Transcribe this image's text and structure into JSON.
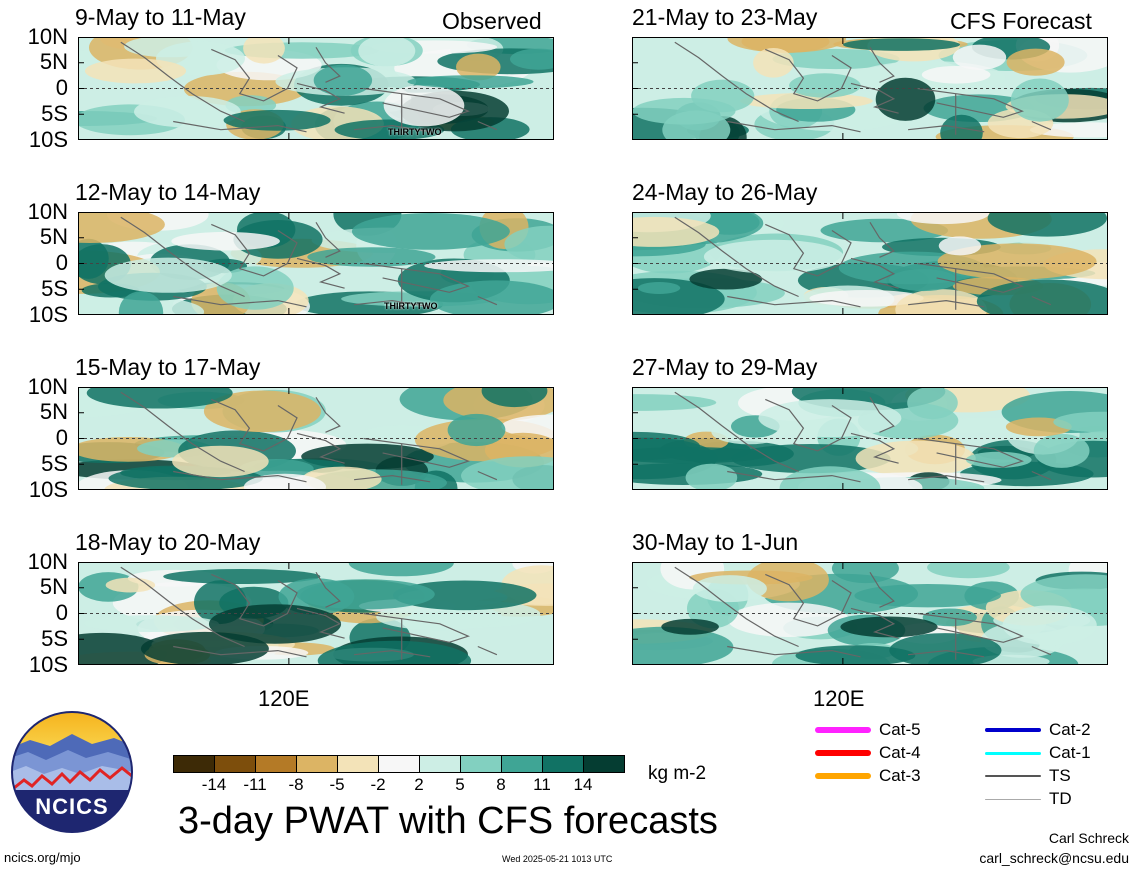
{
  "header": {
    "left_label": "Observed",
    "right_label": "CFS Forecast"
  },
  "panels_left": [
    {
      "title": "9-May to 11-May",
      "annotation": "THIRTYTWO"
    },
    {
      "title": "12-May to 14-May",
      "annotation": "THIRTYTWO"
    },
    {
      "title": "15-May to 17-May",
      "annotation": ""
    },
    {
      "title": "18-May to 20-May",
      "annotation": ""
    }
  ],
  "panels_right": [
    {
      "title": "21-May to 23-May"
    },
    {
      "title": "24-May to 26-May"
    },
    {
      "title": "27-May to 29-May"
    },
    {
      "title": "30-May to 1-Jun"
    }
  ],
  "lat_labels": [
    "10N",
    "5N",
    "0",
    "5S",
    "10S"
  ],
  "lon_label": "120E",
  "colorbar": {
    "ticks": [
      "-14",
      "-11",
      "-8",
      "-5",
      "-2",
      "2",
      "5",
      "8",
      "11",
      "14"
    ],
    "colors": [
      "#3d2a06",
      "#7d4e0c",
      "#b47a26",
      "#dcb464",
      "#f3e3b8",
      "#f7f7f7",
      "#cdeee5",
      "#82d0c0",
      "#3fa595",
      "#117264",
      "#053d32"
    ],
    "units": "kg m-2"
  },
  "legend": {
    "col1": [
      {
        "label": "Cat-5",
        "color": "#ff22ff"
      },
      {
        "label": "Cat-4",
        "color": "#ff0000"
      },
      {
        "label": "Cat-3",
        "color": "#ffa500"
      }
    ],
    "col2": [
      {
        "label": "Cat-2",
        "color": "#0000cc"
      },
      {
        "label": "Cat-1",
        "color": "#00ffff"
      },
      {
        "label": "TS",
        "color": "#555555"
      },
      {
        "label": "TD",
        "color": "#aaaaaa"
      }
    ]
  },
  "title": "3-day PWAT with CFS forecasts",
  "logo_text": "NCICS",
  "footer": {
    "url": "ncics.org/mjo",
    "timestamp": "Wed 2025-05-21 1013 UTC",
    "author": "Carl Schreck",
    "email": "carl_schreck@ncsu.edu"
  }
}
